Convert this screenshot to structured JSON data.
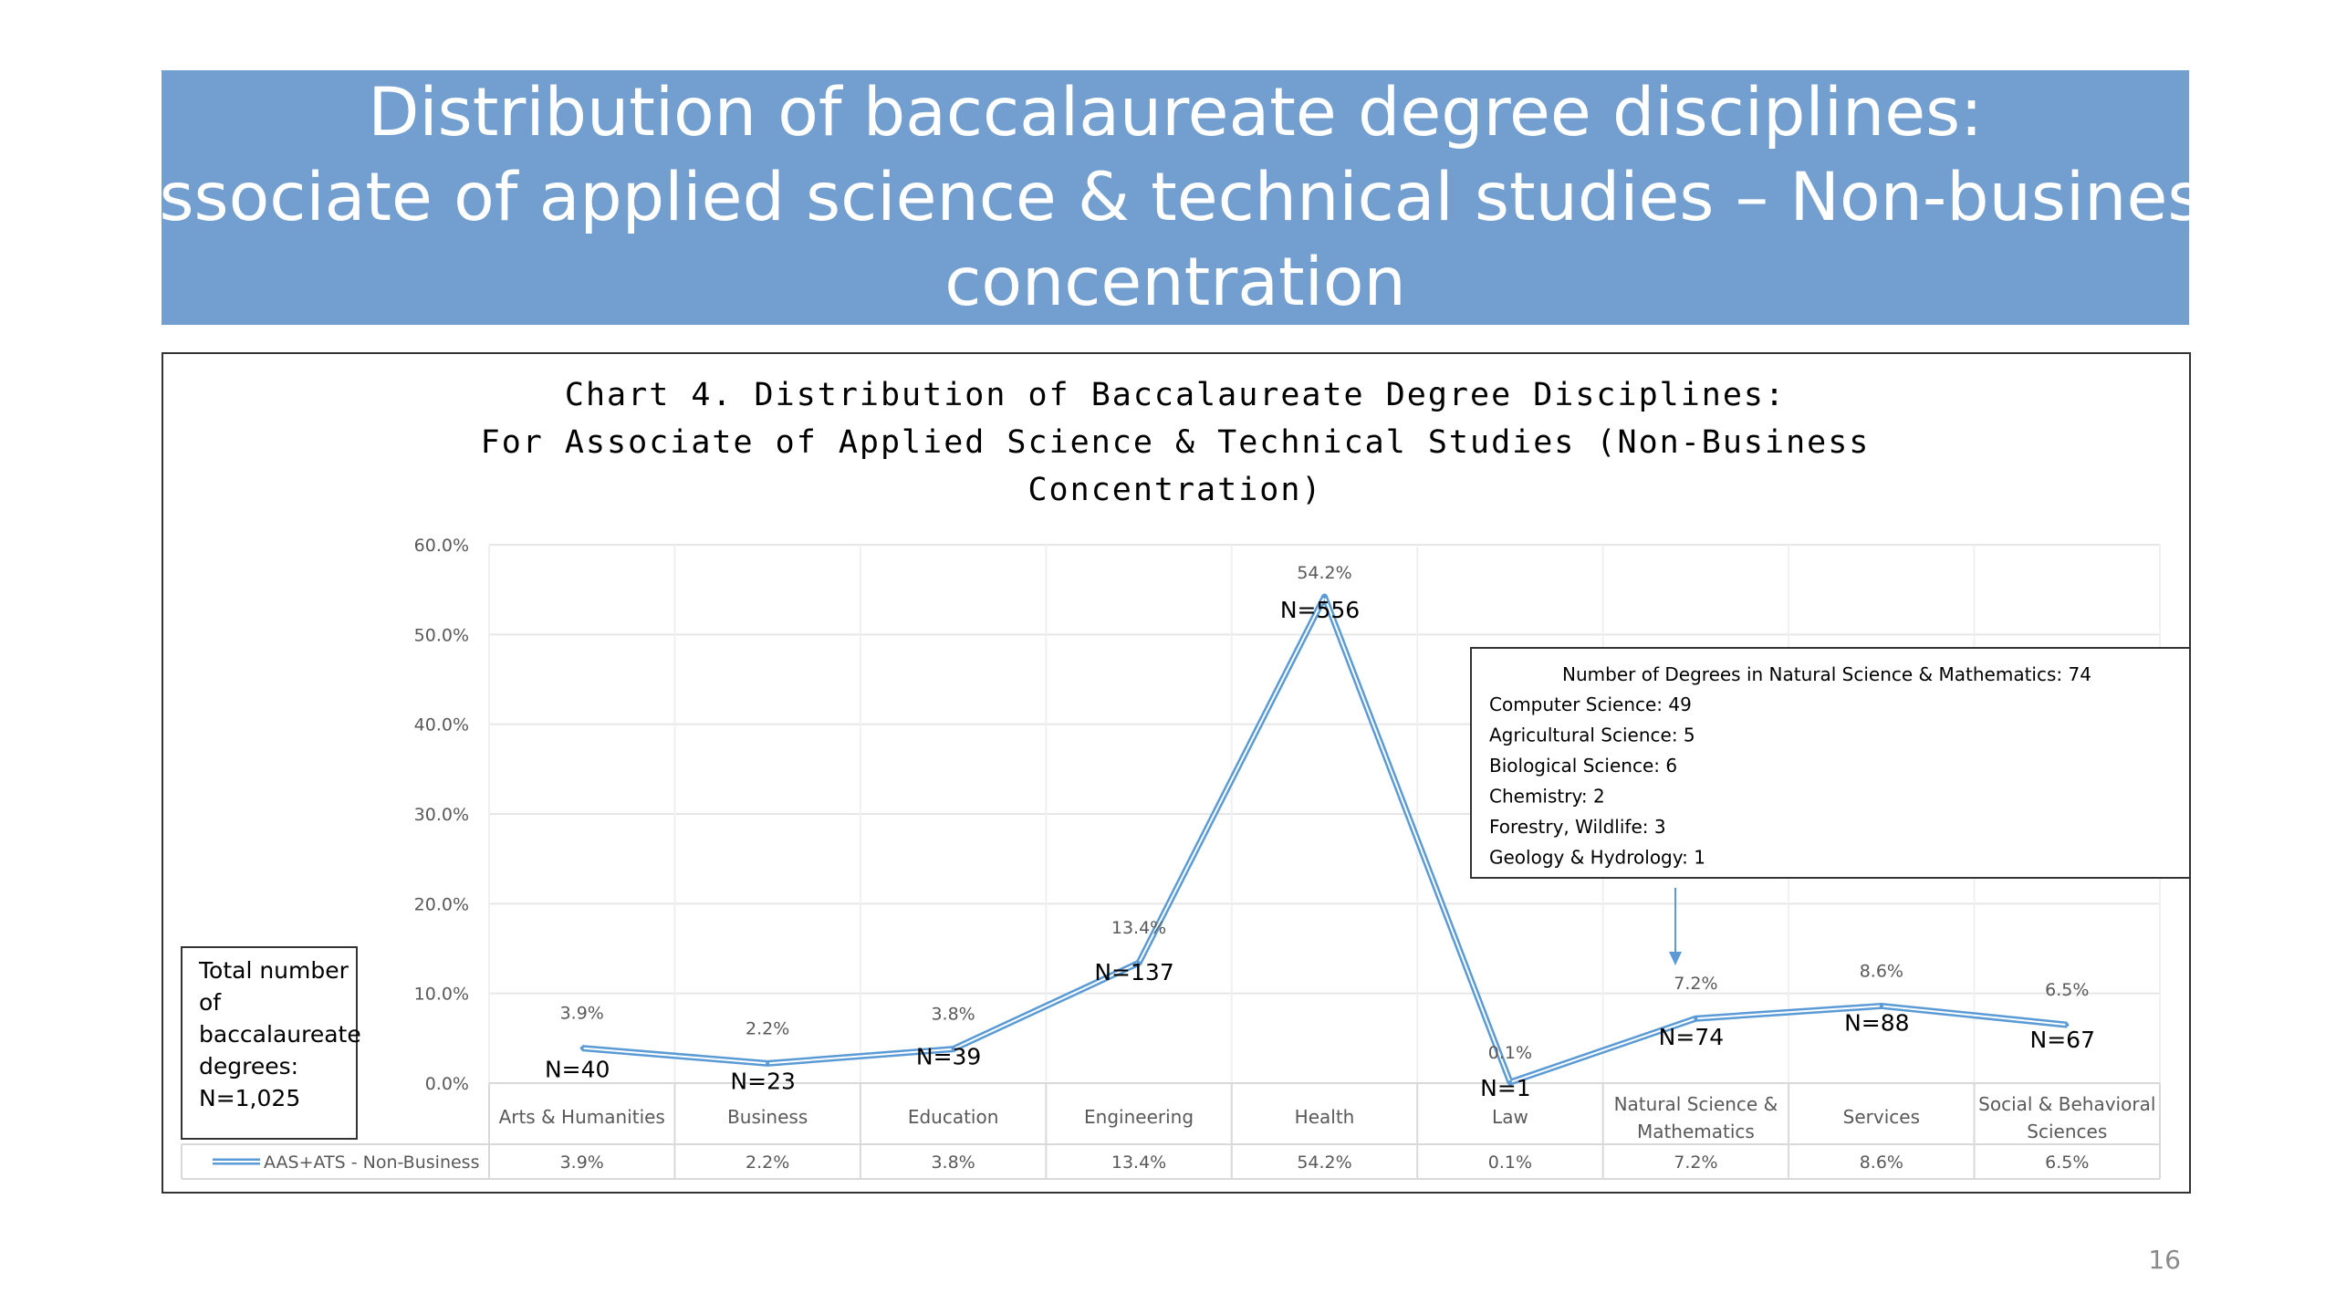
{
  "slide": {
    "title_lines": [
      "Distribution of baccalaureate degree disciplines:",
      "Associate of applied science & technical studies – Non-business",
      "concentration"
    ],
    "page_number": "16",
    "colors": {
      "banner": "#729fcf",
      "series": "#5b9bd5"
    }
  },
  "chart_data": {
    "type": "line",
    "title_lines": [
      "Chart 4. Distribution of Baccalaureate Degree Disciplines:",
      "For Associate of Applied Science & Technical Studies (Non-Business",
      "Concentration)"
    ],
    "categories": [
      [
        "Arts & Humanities"
      ],
      [
        "Business"
      ],
      [
        "Education"
      ],
      [
        "Engineering"
      ],
      [
        "Health"
      ],
      [
        "Law"
      ],
      [
        "Natural Science &",
        "Mathematics"
      ],
      [
        "Services"
      ],
      [
        "Social & Behavioral",
        "Sciences"
      ]
    ],
    "series": [
      {
        "name": "AAS+ATS - Non-Business",
        "values": [
          3.9,
          2.2,
          3.8,
          13.4,
          54.2,
          0.1,
          7.2,
          8.6,
          6.5
        ],
        "value_labels": [
          "3.9%",
          "2.2%",
          "3.8%",
          "13.4%",
          "54.2%",
          "0.1%",
          "7.2%",
          "8.6%",
          "6.5%"
        ],
        "counts": [
          "N=40",
          "N=23",
          "N=39",
          "N=137",
          "N=556",
          "N=1",
          "N=74",
          "N=88",
          "N=67"
        ]
      }
    ],
    "y_ticks": [
      "0.0%",
      "10.0%",
      "20.0%",
      "30.0%",
      "40.0%",
      "50.0%",
      "60.0%"
    ],
    "ylim": [
      0,
      60
    ],
    "grid": true,
    "legend": "data-table",
    "annotations": {
      "total_box_lines": [
        "Total number",
        "of",
        "baccalaureate",
        "degrees:",
        "N=1,025"
      ],
      "natsci_box": {
        "heading": "Number of Degrees in Natural Science & Mathematics: 74",
        "lines": [
          "Computer Science: 49",
          "Agricultural Science: 5",
          "Biological Science: 6",
          "Chemistry: 2",
          "Forestry, Wildlife: 3",
          "Geology & Hydrology: 1"
        ]
      }
    }
  }
}
